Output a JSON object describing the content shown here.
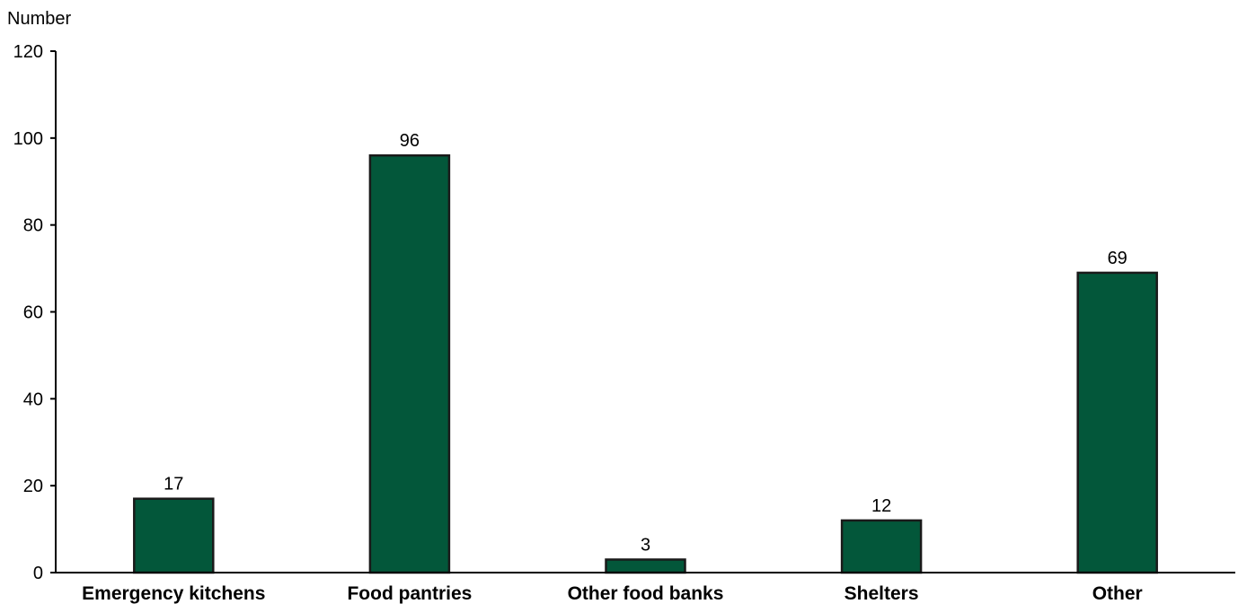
{
  "chart_data": {
    "type": "bar",
    "title": "",
    "xlabel": "",
    "ylabel": "Number",
    "categories": [
      "Emergency kitchens",
      "Food pantries",
      "Other food banks",
      "Shelters",
      "Other"
    ],
    "values": [
      17,
      96,
      3,
      12,
      69
    ],
    "data_labels": [
      "17",
      "96",
      "3",
      "12",
      "69"
    ],
    "ylim": [
      0,
      120
    ],
    "yticks": [
      0,
      20,
      40,
      60,
      80,
      100,
      120
    ],
    "ytick_labels": [
      "0",
      "20",
      "40",
      "60",
      "80",
      "100",
      "120"
    ],
    "grid": false,
    "legend": "none",
    "bar_color": "#03573a",
    "bar_edge_color": "#1a1a1a"
  }
}
